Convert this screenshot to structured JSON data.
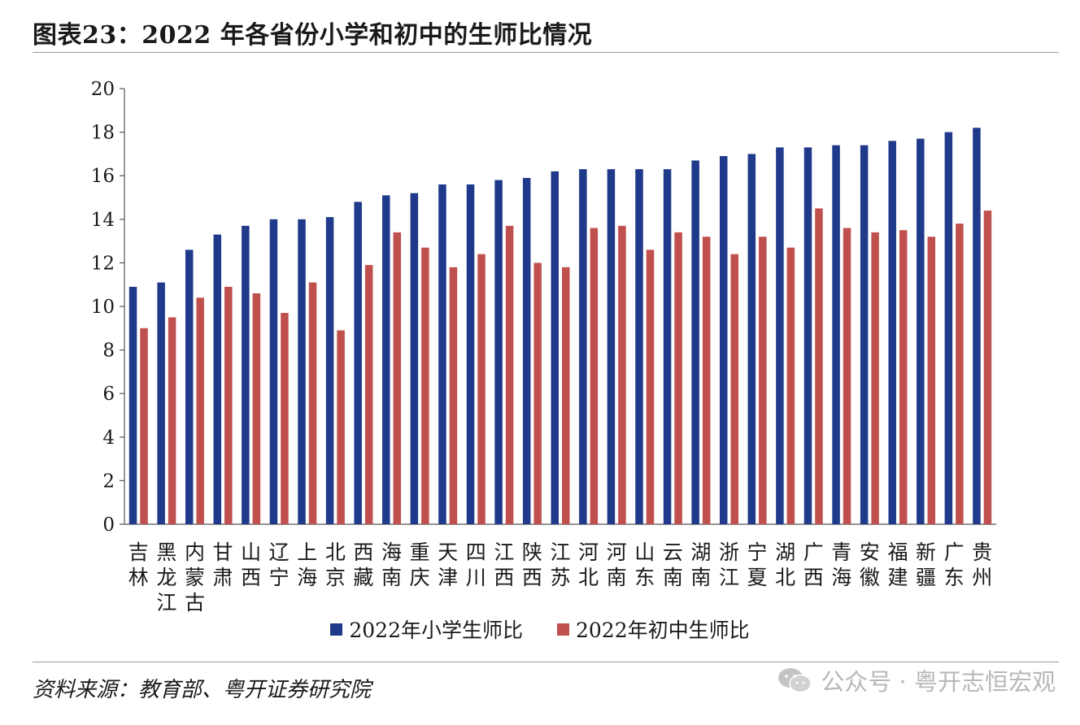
{
  "title": "图表23：2022 年各省份小学和初中的生师比情况",
  "source": "资料来源：教育部、粤开证券研究院",
  "watermark": "公众号 · 粤开志恒宏观",
  "colors": {
    "primary": "#1f3a8a",
    "middle": "#c0504d"
  },
  "chart_data": {
    "type": "bar",
    "ylim": [
      0,
      20
    ],
    "yticks": [
      0,
      2,
      4,
      6,
      8,
      10,
      12,
      14,
      16,
      18,
      20
    ],
    "grid": false,
    "legend_position": "bottom-center",
    "categories": [
      "吉林",
      "黑龙江",
      "内蒙古",
      "甘肃",
      "山西",
      "辽宁",
      "上海",
      "北京",
      "西藏",
      "海南",
      "重庆",
      "天津",
      "四川",
      "江西",
      "陕西",
      "江苏",
      "河北",
      "河南",
      "山东",
      "云南",
      "湖南",
      "浙江",
      "宁夏",
      "湖北",
      "广西",
      "青海",
      "安徽",
      "福建",
      "新疆",
      "广东",
      "贵州"
    ],
    "series": [
      {
        "name": "2022年小学生师比",
        "values": [
          10.9,
          11.1,
          12.6,
          13.3,
          13.7,
          14.0,
          14.0,
          14.1,
          14.8,
          15.1,
          15.2,
          15.6,
          15.6,
          15.8,
          15.9,
          16.2,
          16.3,
          16.3,
          16.3,
          16.3,
          16.7,
          16.9,
          17.0,
          17.3,
          17.3,
          17.4,
          17.4,
          17.6,
          17.7,
          18.0,
          18.2
        ]
      },
      {
        "name": "2022年初中生师比",
        "values": [
          9.0,
          9.5,
          10.4,
          10.9,
          10.6,
          9.7,
          11.1,
          8.9,
          11.9,
          13.4,
          12.7,
          11.8,
          12.4,
          13.7,
          12.0,
          11.8,
          13.6,
          13.7,
          12.6,
          13.4,
          13.2,
          12.4,
          13.2,
          12.7,
          14.5,
          13.6,
          13.4,
          13.5,
          13.2,
          13.8,
          14.4
        ]
      }
    ]
  }
}
